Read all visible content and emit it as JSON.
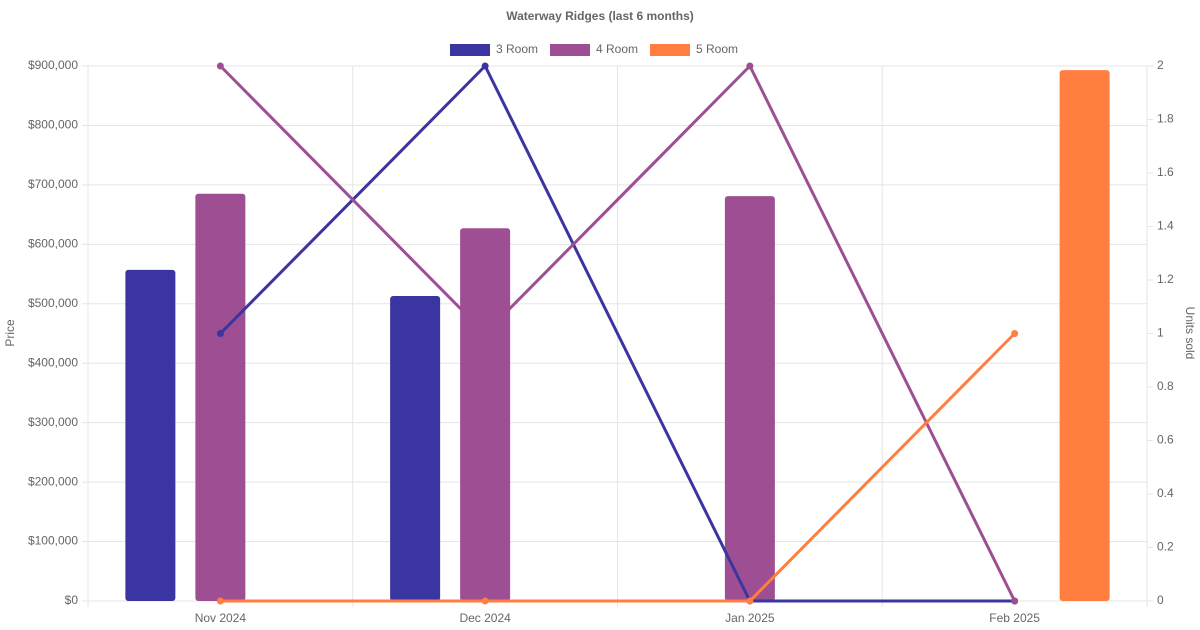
{
  "chart_data": {
    "type": "bar-line",
    "title": "Waterway Ridges (last 6 months)",
    "y_label": "Price",
    "y2_label": "Units sold",
    "categories": [
      "Nov 2024",
      "Dec 2024",
      "Jan 2025",
      "Feb 2025"
    ],
    "series": [
      {
        "name": "3 Room",
        "color": "#3a35a0",
        "values": [
          557000,
          513000,
          null,
          null
        ],
        "units": [
          1,
          2,
          0,
          0
        ]
      },
      {
        "name": "4 Room",
        "color": "#9e4f93",
        "values": [
          685000,
          627000,
          681000,
          null
        ],
        "units": [
          2,
          1,
          2,
          0
        ]
      },
      {
        "name": "5 Room",
        "color": "#ff7e40",
        "values": [
          null,
          null,
          null,
          893000
        ],
        "units": [
          0,
          0,
          0,
          1
        ]
      }
    ],
    "ylim": [
      0,
      900000
    ],
    "yticks": [
      {
        "value": 0,
        "label": "$0"
      },
      {
        "value": 100000,
        "label": "$100,000"
      },
      {
        "value": 200000,
        "label": "$200,000"
      },
      {
        "value": 300000,
        "label": "$300,000"
      },
      {
        "value": 400000,
        "label": "$400,000"
      },
      {
        "value": 500000,
        "label": "$500,000"
      },
      {
        "value": 600000,
        "label": "$600,000"
      },
      {
        "value": 700000,
        "label": "$700,000"
      },
      {
        "value": 800000,
        "label": "$800,000"
      },
      {
        "value": 900000,
        "label": "$900,000"
      }
    ],
    "y2lim": [
      0,
      2
    ],
    "y2ticks": [
      0,
      0.2,
      0.4,
      0.6,
      0.8,
      1,
      1.2,
      1.4,
      1.6,
      1.8,
      2
    ],
    "grid": true
  }
}
